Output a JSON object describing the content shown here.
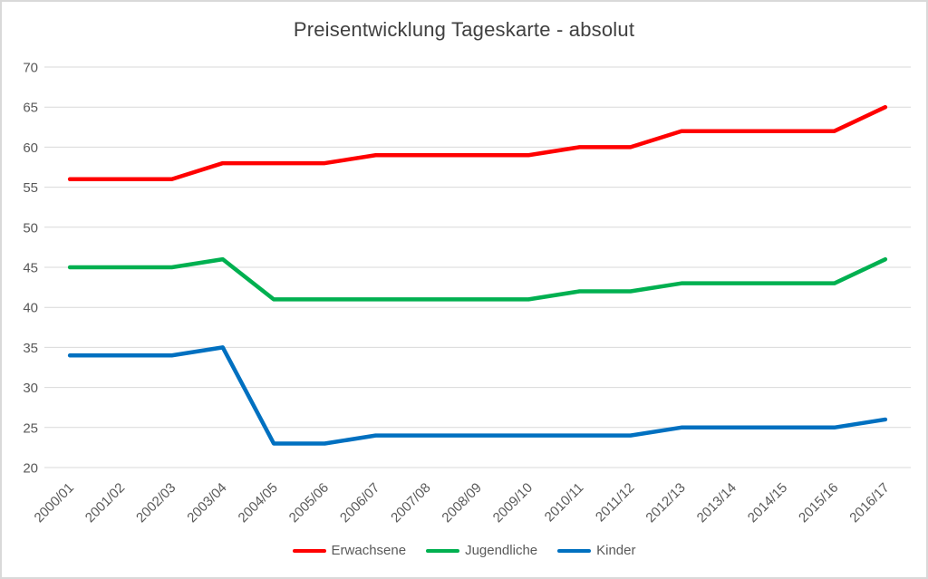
{
  "window": {
    "background": "#ffffff",
    "border_color": "#d9d9d9"
  },
  "chart_data": {
    "type": "line",
    "title": "Preisentwicklung Tageskarte - absolut",
    "title_color": "#404040",
    "categories": [
      "2000/01",
      "2001/02",
      "2002/03",
      "2003/04",
      "2004/05",
      "2005/06",
      "2006/07",
      "2007/08",
      "2008/09",
      "2009/10",
      "2010/11",
      "2011/12",
      "2012/13",
      "2013/14",
      "2014/15",
      "2015/16",
      "2016/17"
    ],
    "series": [
      {
        "name": "Erwachsene",
        "color": "#ff0000",
        "values": [
          56,
          56,
          56,
          58,
          58,
          58,
          59,
          59,
          59,
          59,
          60,
          60,
          62,
          62,
          62,
          62,
          65
        ]
      },
      {
        "name": "Jugendliche",
        "color": "#00b050",
        "values": [
          45,
          45,
          45,
          46,
          41,
          41,
          41,
          41,
          41,
          41,
          42,
          42,
          43,
          43,
          43,
          43,
          46
        ]
      },
      {
        "name": "Kinder",
        "color": "#0070c0",
        "values": [
          34,
          34,
          34,
          35,
          23,
          23,
          24,
          24,
          24,
          24,
          24,
          24,
          25,
          25,
          25,
          25,
          26
        ]
      }
    ],
    "xlabel": "",
    "ylabel": "",
    "ylim": [
      20,
      70
    ],
    "yticks": [
      20,
      25,
      30,
      35,
      40,
      45,
      50,
      55,
      60,
      65,
      70
    ],
    "grid": true,
    "gridline_color": "#d9d9d9",
    "tick_label_color": "#595959",
    "legend_position": "bottom"
  }
}
